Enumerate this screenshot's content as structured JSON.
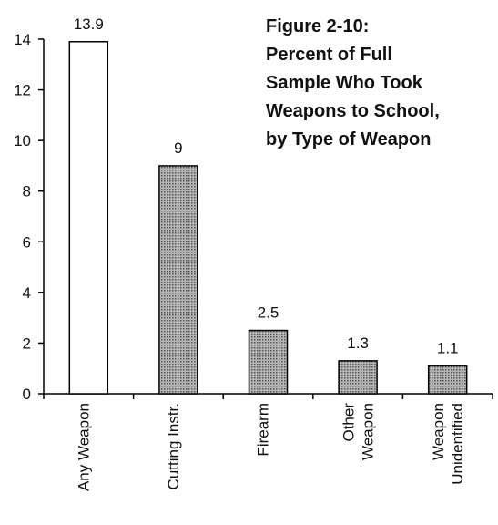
{
  "chart_data": {
    "type": "bar",
    "title": "Figure 2-10:\nPercent of Full\nSample Who Took\nWeapons to School,\nby Type of Weapon",
    "categories": [
      "Any Weapon",
      "Cutting Instr.",
      "Firearm",
      "Other\nWeapon",
      "Weapon\nUnidentified"
    ],
    "values": [
      13.9,
      9,
      2.5,
      1.3,
      1.1
    ],
    "colors": [
      "#ffffff",
      "#9a9a9a",
      "#9a9a9a",
      "#9a9a9a",
      "#9a9a9a"
    ],
    "ylim": [
      0,
      14
    ],
    "yticks": [
      0,
      2,
      4,
      6,
      8,
      10,
      12,
      14
    ],
    "grid": false
  }
}
